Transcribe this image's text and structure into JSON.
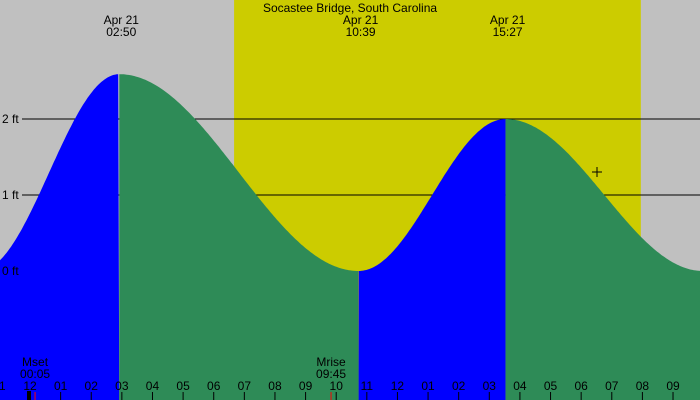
{
  "chart_data": {
    "type": "area",
    "title": "Socastee Bridge, South Carolina",
    "y_unit": "ft",
    "y_ticks": [
      0,
      1,
      2
    ],
    "y_tick_labels": [
      "0 ft",
      "1 ft",
      "2 ft"
    ],
    "x_tick_labels": [
      "11",
      "12",
      "01",
      "02",
      "03",
      "04",
      "05",
      "06",
      "07",
      "08",
      "09",
      "10",
      "11",
      "12",
      "01",
      "02",
      "03",
      "04",
      "05",
      "06",
      "07",
      "08",
      "09"
    ],
    "extremes": [
      {
        "date": "Apr 21",
        "time": "02:50",
        "type": "high",
        "height_ft": 2.59
      },
      {
        "date": "Apr 21",
        "time": "10:39",
        "type": "low",
        "height_ft": 0.0
      },
      {
        "date": "Apr 21",
        "time": "15:27",
        "type": "high",
        "height_ft": 2.0
      }
    ],
    "daylight": {
      "start": "06:35",
      "end": "19:52"
    },
    "moon_events": [
      {
        "label": "Mset",
        "time": "00:05"
      },
      {
        "label": "Mrise",
        "time": "09:45"
      }
    ],
    "colors": {
      "background": "#c0c0c0",
      "daylight": "#cccc00",
      "rising": "#0000ff",
      "falling": "#2e8b57",
      "moon_marker": "#ff0000"
    }
  }
}
